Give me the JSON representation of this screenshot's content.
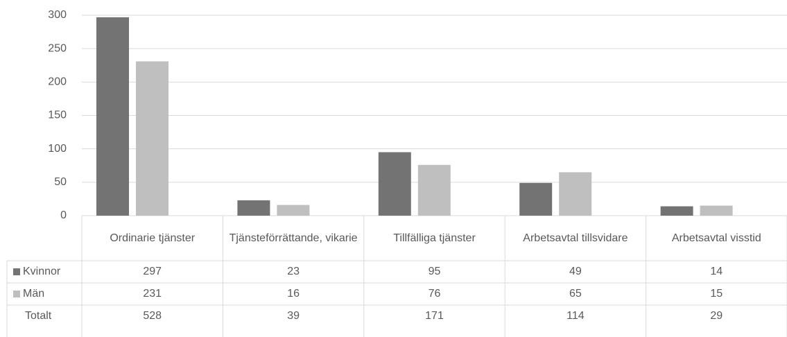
{
  "chart_data": {
    "type": "bar",
    "categories": [
      "Ordinarie tjänster",
      "Tjänsteförrättande, vikarie",
      "Tillfälliga tjänster",
      "Arbetsavtal tillsvidare",
      "Arbetsavtal visstid"
    ],
    "series": [
      {
        "name": "Kvinnor",
        "color": "#737373",
        "values": [
          297,
          23,
          95,
          49,
          14
        ]
      },
      {
        "name": "Män",
        "color": "#bfbfbf",
        "values": [
          231,
          16,
          76,
          65,
          15
        ]
      }
    ],
    "totals": {
      "name": "Totalt",
      "values": [
        528,
        39,
        171,
        114,
        29
      ]
    },
    "ylim": [
      0,
      300
    ],
    "yticks": [
      0,
      50,
      100,
      150,
      200,
      250,
      300
    ],
    "grid": true
  }
}
